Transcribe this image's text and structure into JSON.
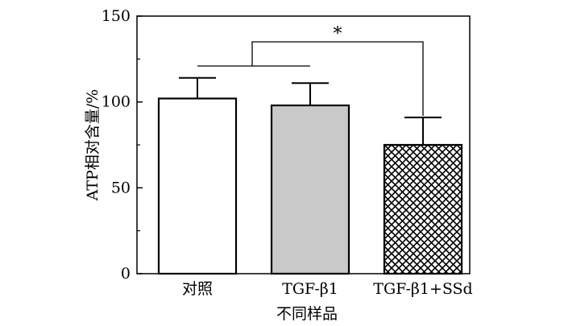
{
  "chart_data": {
    "type": "bar",
    "categories": [
      "对照",
      "TGF-β1",
      "TGF-β1+SSd"
    ],
    "values": [
      102,
      98,
      75
    ],
    "errors": [
      12,
      13,
      16
    ],
    "bar_fills": [
      "#ffffff",
      "#c9c9c9",
      "crosshatch"
    ],
    "xlabel": "不同样品",
    "ylabel": "ATP相对含量/%",
    "ylim": [
      0,
      150
    ],
    "yticks": [
      0,
      50,
      100,
      150
    ],
    "significance": {
      "from_group": [
        0,
        1
      ],
      "to": 2,
      "label": "*"
    },
    "grid": false,
    "legend": "none"
  }
}
